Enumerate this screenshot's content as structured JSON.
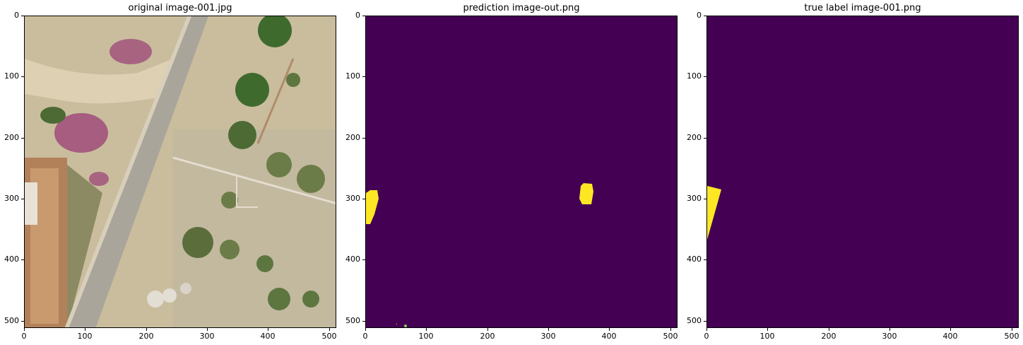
{
  "panels": [
    {
      "title": "original image-001.jpg",
      "kind": "aerial-photo",
      "yticks": [
        "0",
        "100",
        "200",
        "300",
        "400",
        "500"
      ],
      "xticks": [
        "0",
        "100",
        "200",
        "300",
        "400",
        "500"
      ]
    },
    {
      "title": "prediction image-out.png",
      "kind": "segmentation-mask",
      "yticks": [
        "0",
        "100",
        "200",
        "300",
        "400",
        "500"
      ],
      "xticks": [
        "0",
        "100",
        "200",
        "300",
        "400",
        "500"
      ]
    },
    {
      "title": "true label image-001.png",
      "kind": "segmentation-mask",
      "yticks": [
        "0",
        "100",
        "200",
        "300",
        "400",
        "500"
      ],
      "xticks": [
        "0",
        "100",
        "200",
        "300",
        "400",
        "500"
      ]
    }
  ],
  "colors": {
    "mask_background": "#440154",
    "mask_foreground": "#fde725",
    "soil": "#d3c6a6",
    "road": "#aaa59b",
    "vegetation": "#4d6a34",
    "flowers": "#a04c7a"
  },
  "image_extent": [
    0,
    512
  ]
}
